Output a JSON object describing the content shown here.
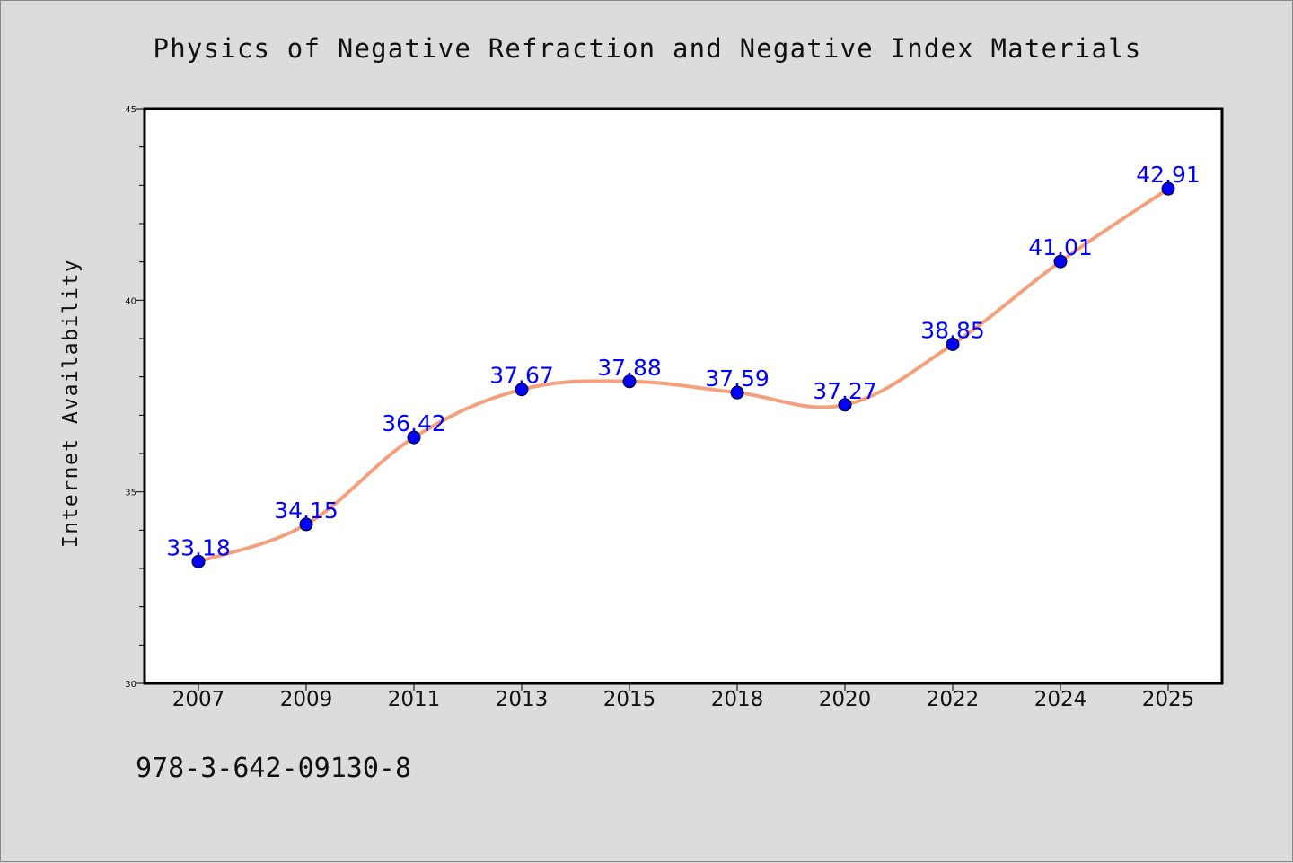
{
  "chart_data": {
    "type": "line",
    "title": "Physics of Negative Refraction and Negative Index Materials",
    "xlabel": "",
    "ylabel": "Internet Availability",
    "categories": [
      "2007",
      "2009",
      "2011",
      "2013",
      "2015",
      "2018",
      "2020",
      "2022",
      "2024",
      "2025"
    ],
    "series": [
      {
        "values": [
          33.18,
          34.15,
          36.42,
          37.67,
          37.88,
          37.59,
          37.27,
          38.85,
          41.01,
          42.91
        ],
        "data_labels": [
          "33.18",
          "34.15",
          "36.42",
          "37.67",
          "37.88",
          "37.59",
          "37.27",
          "38.85",
          "41.01",
          "42.91"
        ]
      }
    ],
    "ylim": [
      30,
      45
    ],
    "yticks": [
      "30",
      "35",
      "40",
      "45"
    ],
    "grid": false,
    "colors": {
      "line": "#f4a07c",
      "marker": "#0000ff",
      "data_label": "#0000ff",
      "background": "#dcdcdc",
      "plot_area": "#ffffff"
    }
  },
  "footer": {
    "isbn": "978-3-642-09130-8"
  }
}
